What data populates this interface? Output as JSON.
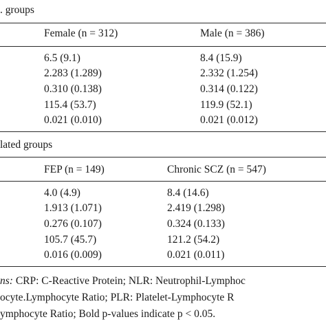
{
  "section1": {
    "title": ". groups",
    "headers": [
      "Female (n = 312)",
      "Male (n = 386)"
    ],
    "rows": [
      [
        "6.5 (9.1)",
        "8.4 (15.9)"
      ],
      [
        "2.283 (1.289)",
        "2.332 (1.254)"
      ],
      [
        "0.310 (0.138)",
        "0.314 (0.122)"
      ],
      [
        "115.4 (53.7)",
        "119.9 (52.1)"
      ],
      [
        "0.021 (0.010)",
        "0.021 (0.012)"
      ]
    ]
  },
  "section2": {
    "title": "lated groups",
    "headers": [
      "FEP (n = 149)",
      "Chronic SCZ (n = 547)"
    ],
    "rows": [
      [
        "4.0 (4.9)",
        "8.4 (14.6)"
      ],
      [
        "1.913 (1.071)",
        "2.419 (1.298)"
      ],
      [
        "0.276 (0.107)",
        "0.324 (0.133)"
      ],
      [
        "105.7 (45.7)",
        "121.2 (54.2)"
      ],
      [
        "0.016 (0.009)",
        "0.021 (0.011)"
      ]
    ]
  },
  "footnote": {
    "label": "ns:",
    "line1": " CRP: C-Reactive Protein; NLR: Neutrophil-Lymphoc",
    "line2": "ocyte.Lymphocyte Ratio; PLR: Platelet-Lymphocyte R",
    "line3": "ymphocyte Ratio; Bold p-values indicate p < 0.05."
  }
}
